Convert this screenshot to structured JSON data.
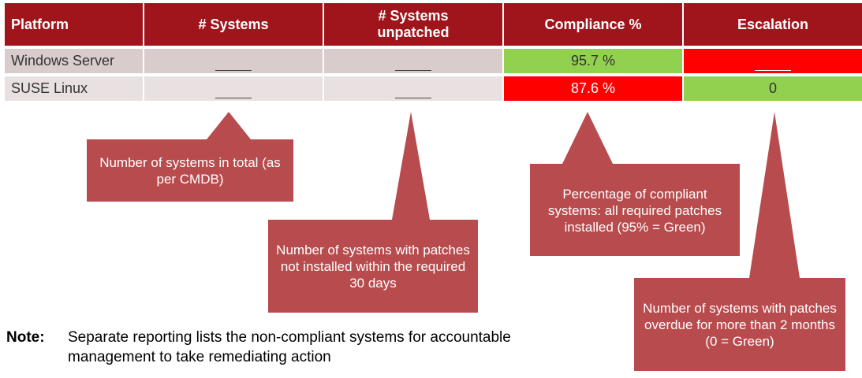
{
  "colors": {
    "header": "#a0151c",
    "row_odd": "#d9cccd",
    "row_even": "#e9e1e1",
    "green": "#92d050",
    "red": "#ff0000",
    "callout": "#b84b4d"
  },
  "table": {
    "headers": [
      "Platform",
      "# Systems",
      "# Systems unpatched",
      "Compliance %",
      "Escalation"
    ],
    "rows": [
      {
        "platform": "Windows Server",
        "systems": "",
        "unpatched": "",
        "compliance": "95.7 %",
        "escalation": ""
      },
      {
        "platform": "SUSE Linux",
        "systems": "",
        "unpatched": "",
        "compliance": "87.6 %",
        "escalation": "0"
      }
    ]
  },
  "callouts": {
    "systems": "Number of systems in total (as per CMDB)",
    "unpatched": "Number of systems with patches not installed within the required 30 days",
    "compliance": "Percentage of compliant systems: all required patches installed (95% = Green)",
    "escalation": "Number of systems with patches overdue for more than 2 months (0 = Green)"
  },
  "note": {
    "label": "Note:",
    "text": "Separate reporting lists the non-compliant systems for accountable management to take remediating action"
  }
}
